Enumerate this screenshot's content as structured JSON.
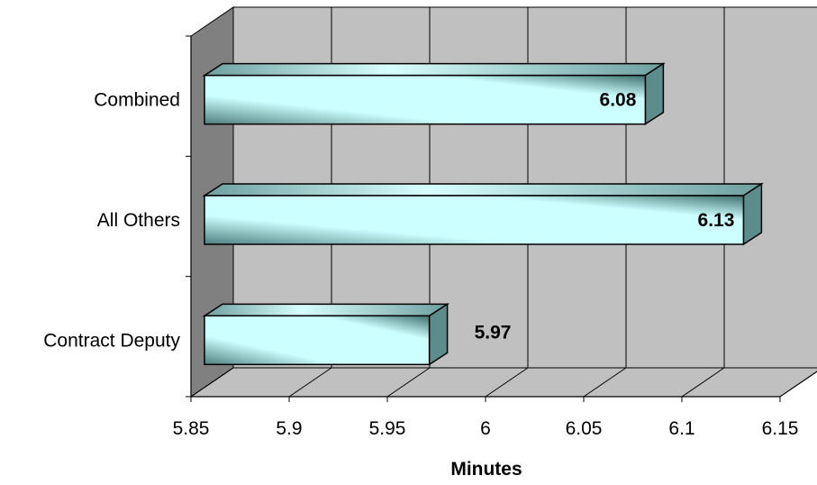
{
  "chart_data": {
    "type": "bar",
    "orientation": "horizontal",
    "three_d": true,
    "categories": [
      "Contract Deputy",
      "All Others",
      "Combined"
    ],
    "values": [
      5.97,
      6.13,
      6.08
    ],
    "value_labels": [
      "5.97",
      "6.13",
      "6.08"
    ],
    "xlabel": "Minutes",
    "ylabel": "",
    "xlim": [
      5.85,
      6.15
    ],
    "xticks": [
      "5.85",
      "5.9",
      "5.95",
      "6",
      "6.05",
      "6.1",
      "6.15"
    ],
    "grid": true,
    "legend": false,
    "colors": {
      "bar_light": "#ccffff",
      "bar_dark": "#2f5f5f",
      "bar_side": "#5c8c8c",
      "bar_top": "#bfeeee",
      "back_wall": "#c0c0c0",
      "side_wall": "#808080",
      "floor": "#c0c0c0",
      "grid": "#000000"
    }
  }
}
